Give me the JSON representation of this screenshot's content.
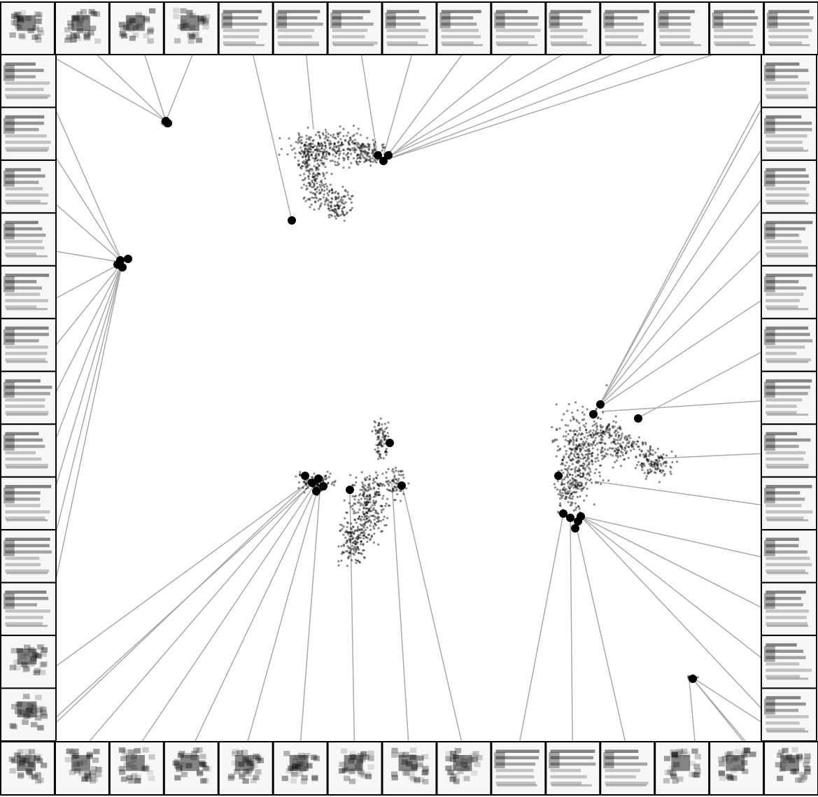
{
  "chart_data": {
    "type": "scatter"
  }
}
